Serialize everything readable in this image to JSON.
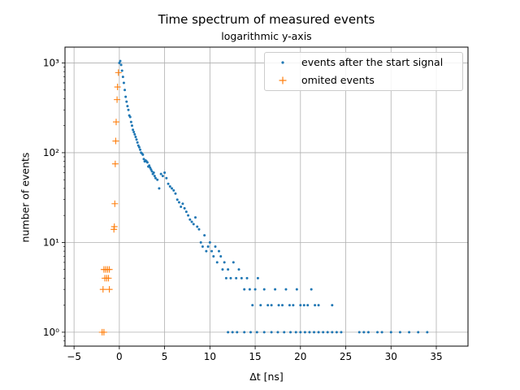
{
  "chart_data": {
    "type": "scatter",
    "title": "Time spectrum of measured events",
    "subtitle": "logarithmic y-axis",
    "xlabel": "Δt [ns]",
    "ylabel": "number of events",
    "xlim": [
      -6.0,
      38.5
    ],
    "ylim": [
      0.7,
      1500
    ],
    "yscale": "log",
    "grid": true,
    "legend_position": "top-right",
    "x_ticks": [
      -5,
      0,
      5,
      10,
      15,
      20,
      25,
      30,
      35
    ],
    "x_tick_labels": [
      "−5",
      "0",
      "5",
      "10",
      "15",
      "20",
      "25",
      "30",
      "35"
    ],
    "y_ticks": [
      1,
      10,
      100,
      1000
    ],
    "y_tick_labels": [
      "10⁰",
      "10¹",
      "10²",
      "10³"
    ],
    "colors": {
      "events": "#1f77b4",
      "omitted": "#ff7f0e",
      "grid": "#b0b0b0"
    },
    "series": [
      {
        "name": "events after the start signal",
        "marker": "dot",
        "points": [
          [
            0.0,
            1000
          ],
          [
            0.1,
            1050
          ],
          [
            0.2,
            950
          ],
          [
            0.3,
            820
          ],
          [
            0.4,
            700
          ],
          [
            0.5,
            600
          ],
          [
            0.6,
            500
          ],
          [
            0.7,
            420
          ],
          [
            0.8,
            370
          ],
          [
            0.9,
            330
          ],
          [
            1.0,
            300
          ],
          [
            1.1,
            260
          ],
          [
            1.2,
            250
          ],
          [
            1.3,
            220
          ],
          [
            1.4,
            200
          ],
          [
            1.5,
            180
          ],
          [
            1.6,
            170
          ],
          [
            1.7,
            160
          ],
          [
            1.8,
            150
          ],
          [
            1.9,
            140
          ],
          [
            2.0,
            130
          ],
          [
            2.1,
            120
          ],
          [
            2.2,
            115
          ],
          [
            2.3,
            108
          ],
          [
            2.4,
            100
          ],
          [
            2.5,
            98
          ],
          [
            2.6,
            95
          ],
          [
            2.7,
            85
          ],
          [
            2.8,
            80
          ],
          [
            2.9,
            82
          ],
          [
            3.0,
            80
          ],
          [
            3.1,
            78
          ],
          [
            3.2,
            70
          ],
          [
            3.3,
            72
          ],
          [
            3.4,
            68
          ],
          [
            3.5,
            65
          ],
          [
            3.6,
            62
          ],
          [
            3.7,
            58
          ],
          [
            3.8,
            60
          ],
          [
            3.9,
            55
          ],
          [
            4.0,
            52
          ],
          [
            4.2,
            50
          ],
          [
            4.4,
            40
          ],
          [
            4.6,
            58
          ],
          [
            4.8,
            55
          ],
          [
            5.0,
            60
          ],
          [
            5.2,
            52
          ],
          [
            5.4,
            45
          ],
          [
            5.6,
            42
          ],
          [
            5.8,
            40
          ],
          [
            6.0,
            38
          ],
          [
            6.2,
            35
          ],
          [
            6.4,
            30
          ],
          [
            6.6,
            28
          ],
          [
            6.8,
            25
          ],
          [
            7.0,
            27
          ],
          [
            7.2,
            24
          ],
          [
            7.4,
            22
          ],
          [
            7.6,
            20
          ],
          [
            7.8,
            18
          ],
          [
            8.0,
            17
          ],
          [
            8.2,
            16
          ],
          [
            8.4,
            19
          ],
          [
            8.6,
            15
          ],
          [
            8.8,
            14
          ],
          [
            9.0,
            10
          ],
          [
            9.2,
            9
          ],
          [
            9.4,
            12
          ],
          [
            9.6,
            8
          ],
          [
            9.8,
            9
          ],
          [
            10.0,
            10
          ],
          [
            10.2,
            8
          ],
          [
            10.4,
            7
          ],
          [
            10.6,
            9
          ],
          [
            10.8,
            6
          ],
          [
            11.0,
            8
          ],
          [
            11.2,
            7
          ],
          [
            11.4,
            5
          ],
          [
            11.6,
            6
          ],
          [
            11.8,
            4
          ],
          [
            12.0,
            5
          ],
          [
            12.3,
            4
          ],
          [
            12.6,
            6
          ],
          [
            12.9,
            4
          ],
          [
            13.2,
            5
          ],
          [
            13.5,
            4
          ],
          [
            13.8,
            3
          ],
          [
            14.1,
            4
          ],
          [
            14.4,
            3
          ],
          [
            14.7,
            2
          ],
          [
            15.0,
            3
          ],
          [
            15.3,
            4
          ],
          [
            15.6,
            2
          ],
          [
            16.0,
            3
          ],
          [
            16.4,
            2
          ],
          [
            16.8,
            2
          ],
          [
            17.2,
            3
          ],
          [
            17.6,
            2
          ],
          [
            18.0,
            2
          ],
          [
            18.4,
            3
          ],
          [
            18.8,
            2
          ],
          [
            19.2,
            2
          ],
          [
            19.6,
            3
          ],
          [
            20.0,
            2
          ],
          [
            20.4,
            2
          ],
          [
            20.8,
            2
          ],
          [
            21.2,
            3
          ],
          [
            21.6,
            2
          ],
          [
            22.0,
            2
          ],
          [
            23.5,
            2
          ],
          [
            12.0,
            1
          ],
          [
            12.5,
            1
          ],
          [
            13.0,
            1
          ],
          [
            13.8,
            1
          ],
          [
            14.5,
            1
          ],
          [
            15.2,
            1
          ],
          [
            16.0,
            1
          ],
          [
            16.8,
            1
          ],
          [
            17.5,
            1
          ],
          [
            18.2,
            1
          ],
          [
            18.9,
            1
          ],
          [
            19.5,
            1
          ],
          [
            20.0,
            1
          ],
          [
            20.5,
            1
          ],
          [
            21.0,
            1
          ],
          [
            21.5,
            1
          ],
          [
            22.0,
            1
          ],
          [
            22.5,
            1
          ],
          [
            23.0,
            1
          ],
          [
            23.5,
            1
          ],
          [
            24.0,
            1
          ],
          [
            24.5,
            1
          ],
          [
            26.5,
            1
          ],
          [
            27.0,
            1
          ],
          [
            27.5,
            1
          ],
          [
            28.5,
            1
          ],
          [
            29.0,
            1
          ],
          [
            30.0,
            1
          ],
          [
            31.0,
            1
          ],
          [
            32.0,
            1
          ],
          [
            33.0,
            1
          ],
          [
            34.0,
            1
          ]
        ]
      },
      {
        "name": "omited events",
        "marker": "plus",
        "points": [
          [
            -0.1,
            780
          ],
          [
            -0.2,
            540
          ],
          [
            -0.25,
            390
          ],
          [
            -0.35,
            220
          ],
          [
            -0.4,
            135
          ],
          [
            -0.45,
            75
          ],
          [
            -0.5,
            27
          ],
          [
            -0.55,
            15
          ],
          [
            -0.6,
            14
          ],
          [
            -1.1,
            5
          ],
          [
            -1.3,
            5
          ],
          [
            -1.5,
            5
          ],
          [
            -1.7,
            5
          ],
          [
            -1.2,
            4
          ],
          [
            -1.4,
            4
          ],
          [
            -1.6,
            4
          ],
          [
            -1.1,
            3
          ],
          [
            -1.8,
            3
          ],
          [
            -1.7,
            1
          ],
          [
            -1.9,
            1
          ]
        ]
      }
    ]
  }
}
